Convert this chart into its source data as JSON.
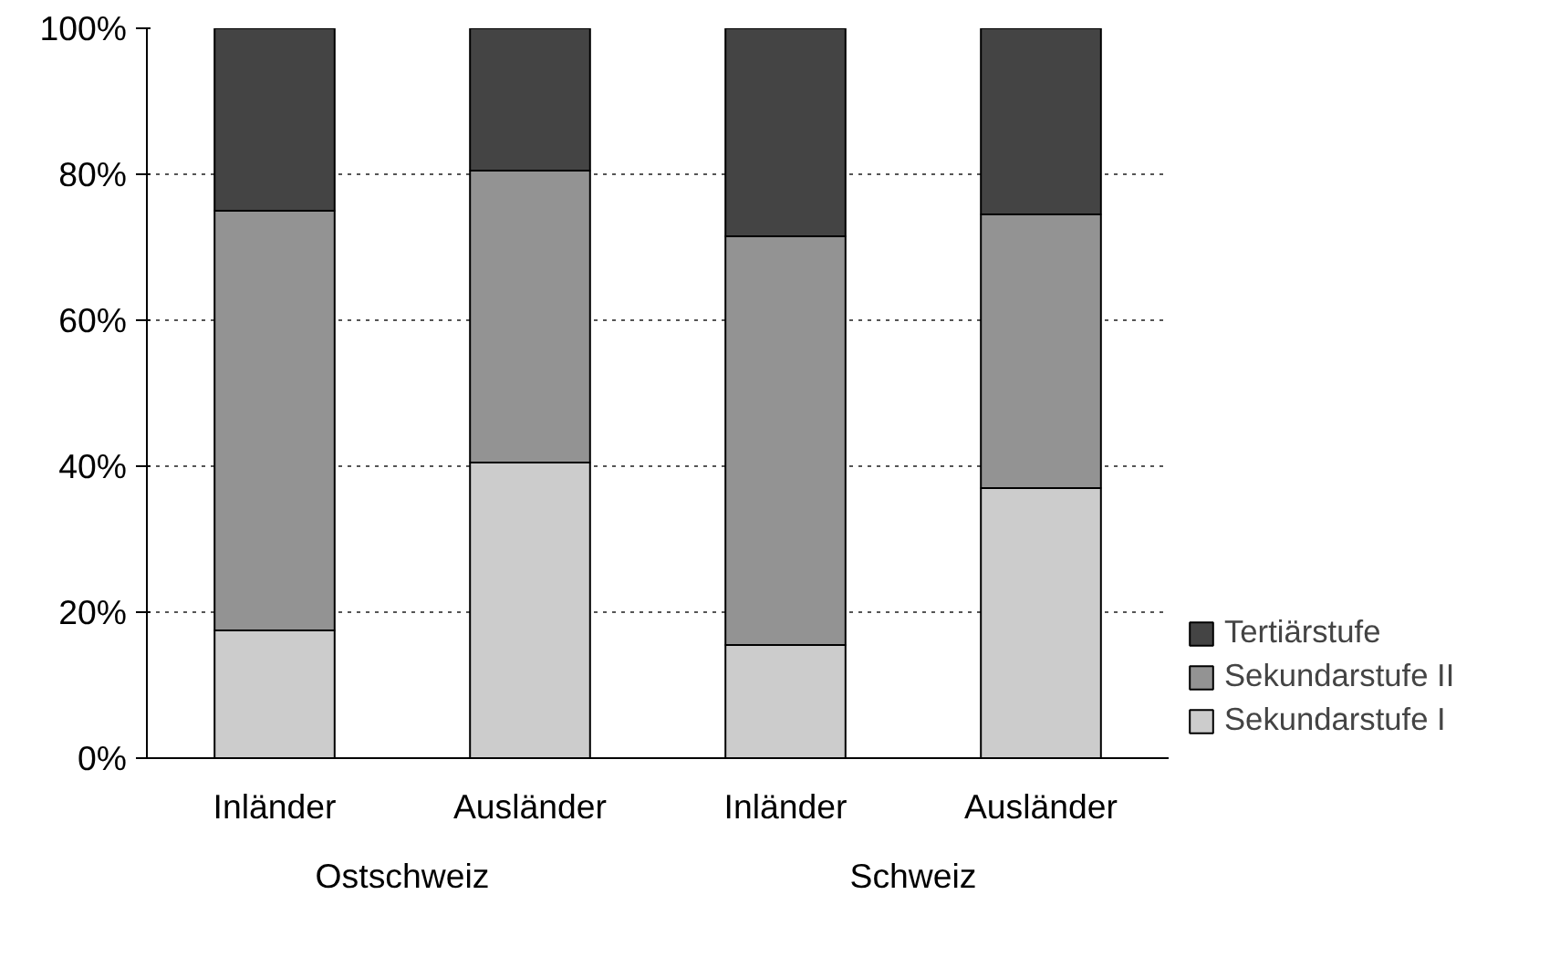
{
  "chart_data": {
    "type": "bar",
    "stacked": true,
    "categories": [
      "Inländer",
      "Ausländer",
      "Inländer",
      "Ausländer"
    ],
    "annotations": [
      "Ostschweiz",
      "Schweiz"
    ],
    "series": [
      {
        "name": "Sekundarstufe I",
        "color": "#cccccc",
        "values": [
          17.5,
          40.5,
          15.5,
          37
        ]
      },
      {
        "name": "Sekundarstufe II",
        "color": "#939393",
        "values": [
          57.5,
          40,
          56,
          37.5
        ]
      },
      {
        "name": "Tertiärstufe",
        "color": "#444444",
        "values": [
          25,
          19.5,
          28.5,
          25.5
        ]
      }
    ],
    "ylim": [
      0,
      100
    ],
    "yticks": [
      {
        "value": 0,
        "label": "0%"
      },
      {
        "value": 20,
        "label": "20%"
      },
      {
        "value": 40,
        "label": "40%"
      },
      {
        "value": 60,
        "label": "60%"
      },
      {
        "value": 80,
        "label": "80%"
      },
      {
        "value": 100,
        "label": "100%"
      }
    ],
    "grid": "y",
    "legend": "right"
  }
}
